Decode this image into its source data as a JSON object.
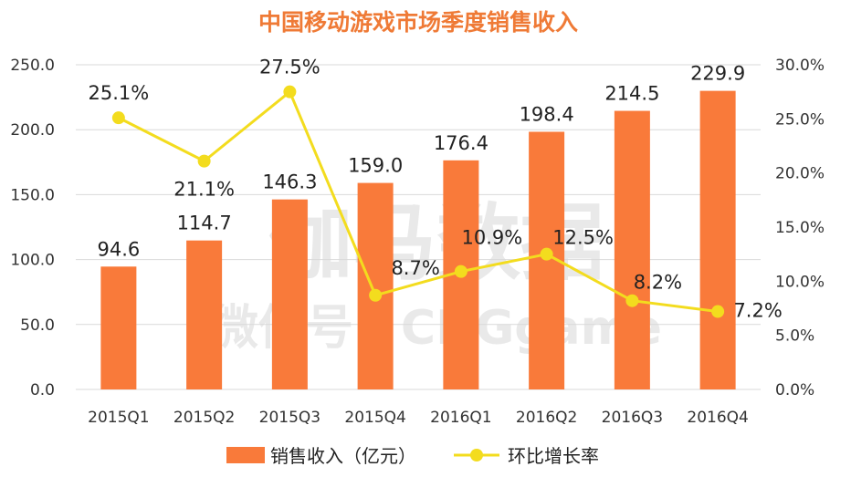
{
  "chart_data": {
    "type": "bar+line",
    "title": "中国移动游戏市场季度销售收入",
    "categories": [
      "2015Q1",
      "2015Q2",
      "2015Q3",
      "2015Q4",
      "2016Q1",
      "2016Q2",
      "2016Q3",
      "2016Q4"
    ],
    "series": [
      {
        "name": "销售收入（亿元）",
        "type": "bar",
        "axis": "left",
        "color": "#f97a3a",
        "values": [
          94.6,
          114.7,
          146.3,
          159.0,
          176.4,
          198.4,
          214.5,
          229.9
        ],
        "labels": [
          "94.6",
          "114.7",
          "146.3",
          "159.0",
          "176.4",
          "198.4",
          "214.5",
          "229.9"
        ]
      },
      {
        "name": "环比增长率",
        "type": "line",
        "axis": "right",
        "color": "#f3dc1e",
        "values": [
          25.1,
          21.1,
          27.5,
          8.7,
          10.9,
          12.5,
          8.2,
          7.2
        ],
        "labels": [
          "25.1%",
          "21.1%",
          "27.5%",
          "8.7%",
          "10.9%",
          "12.5%",
          "8.2%",
          "7.2%"
        ]
      }
    ],
    "y_left": {
      "lim": [
        0,
        250
      ],
      "ticks": [
        "0.0",
        "50.0",
        "100.0",
        "150.0",
        "200.0",
        "250.0"
      ]
    },
    "y_right": {
      "lim": [
        0,
        30
      ],
      "ticks": [
        "0.0%",
        "5.0%",
        "10.0%",
        "15.0%",
        "20.0%",
        "25.0%",
        "30.0%"
      ]
    },
    "grid": true,
    "legend": "bottom"
  },
  "watermark": {
    "line1": "伽马数据",
    "line2": "微信号：CNGgame"
  },
  "colors": {
    "title": "#ef7a36",
    "bar": "#f97a3a",
    "line": "#f3dc1e",
    "grid": "#d9d9d9"
  }
}
